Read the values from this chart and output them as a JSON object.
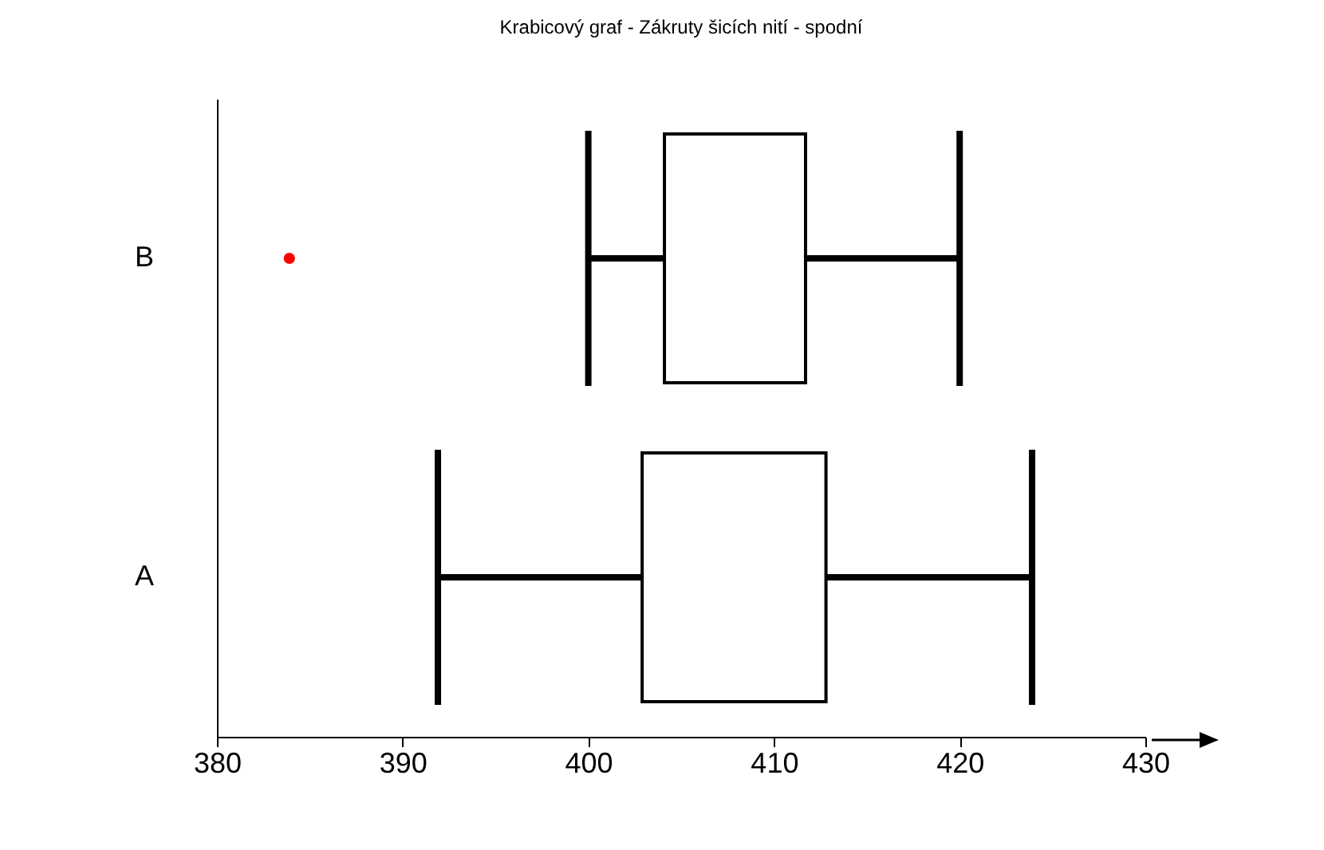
{
  "chart_data": {
    "type": "box",
    "title": "Krabicový graf - Zákruty šicích nití - spodní",
    "orientation": "horizontal",
    "categories": [
      "B",
      "A"
    ],
    "boxes": [
      {
        "low": 400,
        "q1": 404.1,
        "q3": 411.7,
        "high": 420,
        "outliers": [
          383.9
        ]
      },
      {
        "low": 391.9,
        "q1": 402.9,
        "q3": 412.8,
        "high": 423.9
      }
    ],
    "xlim": [
      380,
      430
    ],
    "xticks": [
      380,
      390,
      400,
      410,
      420,
      430
    ],
    "grid": false
  }
}
